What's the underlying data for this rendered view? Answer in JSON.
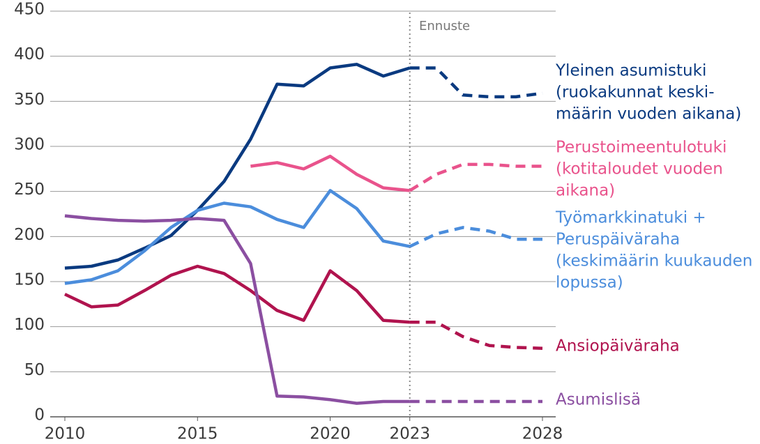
{
  "chart_data": {
    "type": "line",
    "annotation": "Ennuste",
    "forecast_x": 2023,
    "x": [
      2010,
      2011,
      2012,
      2013,
      2014,
      2015,
      2016,
      2017,
      2018,
      2019,
      2020,
      2021,
      2022,
      2023,
      2024,
      2025,
      2026,
      2027,
      2028
    ],
    "xlim": [
      2010,
      2028
    ],
    "xticks": [
      2010,
      2015,
      2020,
      2023,
      2028
    ],
    "ylim": [
      0,
      450
    ],
    "yticks": [
      0,
      50,
      100,
      150,
      200,
      250,
      300,
      350,
      400,
      450
    ],
    "grid": true,
    "series": [
      {
        "name_lines": [
          "Yleinen asumistuki"
        ],
        "description_lines": [
          "(ruokakunnat keski-",
          "määrin vuoden aikana)"
        ],
        "color": "#0a3a80",
        "values": [
          165,
          167,
          174,
          187,
          201,
          229,
          261,
          308,
          369,
          367,
          387,
          391,
          378,
          387,
          387,
          357,
          355,
          355,
          359
        ]
      },
      {
        "name_lines": [
          "Perustoimeentulotuki"
        ],
        "description_lines": [
          "(kotitaloudet vuoden",
          "aikana)"
        ],
        "color": "#e9538c",
        "values": [
          null,
          null,
          null,
          null,
          null,
          null,
          null,
          278,
          282,
          275,
          289,
          269,
          254,
          251,
          269,
          280,
          280,
          278,
          278
        ]
      },
      {
        "name_lines": [
          "Työmarkkinatuki +",
          "Peruspäiväraha"
        ],
        "description_lines": [
          "(keskimäärin kuukauden",
          "lopussa)"
        ],
        "color": "#4b8ddc",
        "values": [
          148,
          152,
          162,
          184,
          210,
          229,
          237,
          233,
          219,
          210,
          251,
          231,
          195,
          189,
          203,
          210,
          206,
          197,
          197
        ]
      },
      {
        "name_lines": [
          "Ansiopäiväraha"
        ],
        "description_lines": [],
        "color": "#b0134e",
        "values": [
          136,
          122,
          124,
          140,
          157,
          167,
          159,
          140,
          118,
          107,
          162,
          140,
          107,
          105,
          105,
          89,
          79,
          77,
          76
        ]
      },
      {
        "name_lines": [
          "Asumislisä"
        ],
        "description_lines": [],
        "color": "#8b4fa1",
        "values": [
          223,
          220,
          218,
          217,
          218,
          220,
          218,
          170,
          23,
          22,
          19,
          15,
          17,
          17,
          17,
          17,
          17,
          17,
          17
        ]
      }
    ]
  }
}
